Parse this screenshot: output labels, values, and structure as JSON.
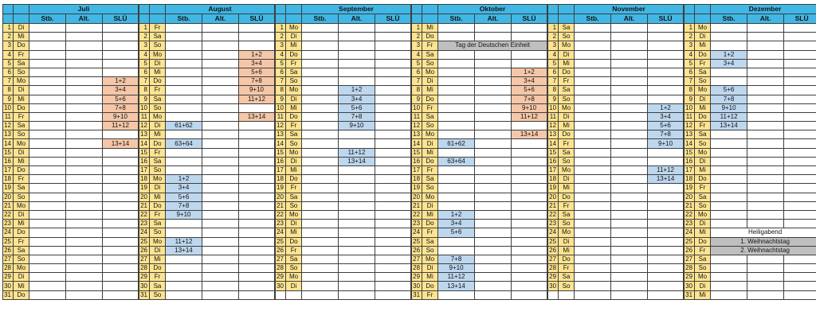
{
  "colors": {
    "header_blue": "#41b7e6",
    "day_yellow": "#ffe490",
    "cell_pink": "#f5c7a8",
    "cell_blue": "#bdd7ee",
    "cell_gray": "#bfbfbf"
  },
  "column_headers": [
    {
      "key": "stb",
      "label": "Stb."
    },
    {
      "key": "alt",
      "label": "Alt."
    },
    {
      "key": "slu",
      "label": "SLÜ"
    }
  ],
  "grid_rows": 31,
  "months": [
    {
      "id": "juli",
      "name": "Juli",
      "days_in_month": 31,
      "weekdays": [
        "Di",
        "Mi",
        "Do",
        "Fr",
        "Sa",
        "So",
        "Mo",
        "Di",
        "Mi",
        "Do",
        "Fr",
        "Sa",
        "So",
        "Mo",
        "Di",
        "Mi",
        "Do",
        "Fr",
        "Sa",
        "So",
        "Mo",
        "Di",
        "Mi",
        "Do",
        "Fr",
        "Sa",
        "So",
        "Mo",
        "Di",
        "Mi",
        "Do"
      ],
      "cells": [
        {
          "day": 7,
          "col": "slu",
          "value": "1+2",
          "color": "pink"
        },
        {
          "day": 8,
          "col": "slu",
          "value": "3+4",
          "color": "pink"
        },
        {
          "day": 9,
          "col": "slu",
          "value": "5+6",
          "color": "pink"
        },
        {
          "day": 10,
          "col": "slu",
          "value": "7+8",
          "color": "pink"
        },
        {
          "day": 11,
          "col": "slu",
          "value": "9+10",
          "color": "pink"
        },
        {
          "day": 12,
          "col": "slu",
          "value": "11+12",
          "color": "pink"
        },
        {
          "day": 14,
          "col": "slu",
          "value": "13+14",
          "color": "pink"
        }
      ],
      "holidays": []
    },
    {
      "id": "august",
      "name": "August",
      "days_in_month": 31,
      "weekdays": [
        "Fr",
        "Sa",
        "So",
        "Mo",
        "Di",
        "Mi",
        "Do",
        "Fr",
        "Sa",
        "So",
        "Mo",
        "Di",
        "Mi",
        "Do",
        "Fr",
        "Sa",
        "So",
        "Mo",
        "Di",
        "Mi",
        "Do",
        "Fr",
        "Sa",
        "So",
        "Mo",
        "Di",
        "Mi",
        "Do",
        "Fr",
        "Sa",
        "So"
      ],
      "cells": [
        {
          "day": 4,
          "col": "slu",
          "value": "1+2",
          "color": "pink"
        },
        {
          "day": 5,
          "col": "slu",
          "value": "3+4",
          "color": "pink"
        },
        {
          "day": 6,
          "col": "slu",
          "value": "5+6",
          "color": "pink"
        },
        {
          "day": 7,
          "col": "slu",
          "value": "7+8",
          "color": "pink"
        },
        {
          "day": 8,
          "col": "slu",
          "value": "9+10",
          "color": "pink"
        },
        {
          "day": 9,
          "col": "slu",
          "value": "11+12",
          "color": "pink"
        },
        {
          "day": 11,
          "col": "slu",
          "value": "13+14",
          "color": "pink"
        },
        {
          "day": 12,
          "col": "stb",
          "value": "61+62",
          "color": "blue"
        },
        {
          "day": 14,
          "col": "stb",
          "value": "63+64",
          "color": "blue"
        },
        {
          "day": 18,
          "col": "stb",
          "value": "1+2",
          "color": "blue"
        },
        {
          "day": 19,
          "col": "stb",
          "value": "3+4",
          "color": "blue"
        },
        {
          "day": 20,
          "col": "stb",
          "value": "5+6",
          "color": "blue"
        },
        {
          "day": 21,
          "col": "stb",
          "value": "7+8",
          "color": "blue"
        },
        {
          "day": 22,
          "col": "stb",
          "value": "9+10",
          "color": "blue"
        },
        {
          "day": 25,
          "col": "stb",
          "value": "11+12",
          "color": "blue"
        },
        {
          "day": 26,
          "col": "stb",
          "value": "13+14",
          "color": "blue"
        }
      ],
      "holidays": []
    },
    {
      "id": "september",
      "name": "September",
      "days_in_month": 30,
      "weekdays": [
        "Mo",
        "Di",
        "Mi",
        "Do",
        "Fr",
        "Sa",
        "So",
        "Mo",
        "Di",
        "Mi",
        "Do",
        "Fr",
        "Sa",
        "So",
        "Mo",
        "Di",
        "Mi",
        "Do",
        "Fr",
        "Sa",
        "So",
        "Mo",
        "Di",
        "Mi",
        "Do",
        "Fr",
        "Sa",
        "So",
        "Mo",
        "Di"
      ],
      "cells": [
        {
          "day": 8,
          "col": "alt",
          "value": "1+2",
          "color": "blue"
        },
        {
          "day": 9,
          "col": "alt",
          "value": "3+4",
          "color": "blue"
        },
        {
          "day": 10,
          "col": "alt",
          "value": "5+6",
          "color": "blue"
        },
        {
          "day": 11,
          "col": "alt",
          "value": "7+8",
          "color": "blue"
        },
        {
          "day": 12,
          "col": "alt",
          "value": "9+10",
          "color": "blue"
        },
        {
          "day": 15,
          "col": "alt",
          "value": "11+12",
          "color": "blue"
        },
        {
          "day": 16,
          "col": "alt",
          "value": "13+14",
          "color": "blue"
        }
      ],
      "holidays": []
    },
    {
      "id": "oktober",
      "name": "Oktober",
      "days_in_month": 31,
      "weekdays": [
        "Mi",
        "Do",
        "Fr",
        "Sa",
        "So",
        "Mo",
        "Di",
        "Mi",
        "Do",
        "Fr",
        "Sa",
        "So",
        "Mo",
        "Di",
        "Mi",
        "Do",
        "Fr",
        "Sa",
        "So",
        "Mo",
        "Di",
        "Mi",
        "Do",
        "Fr",
        "Sa",
        "So",
        "Mo",
        "Di",
        "Mi",
        "Do",
        "Fr"
      ],
      "cells": [
        {
          "day": 6,
          "col": "slu",
          "value": "1+2",
          "color": "pink"
        },
        {
          "day": 7,
          "col": "slu",
          "value": "3+4",
          "color": "pink"
        },
        {
          "day": 8,
          "col": "slu",
          "value": "5+6",
          "color": "pink"
        },
        {
          "day": 9,
          "col": "slu",
          "value": "7+8",
          "color": "pink"
        },
        {
          "day": 10,
          "col": "slu",
          "value": "9+10",
          "color": "pink"
        },
        {
          "day": 11,
          "col": "slu",
          "value": "11+12",
          "color": "pink"
        },
        {
          "day": 13,
          "col": "slu",
          "value": "13+14",
          "color": "pink"
        },
        {
          "day": 14,
          "col": "stb",
          "value": "61+62",
          "color": "blue"
        },
        {
          "day": 16,
          "col": "stb",
          "value": "63+64",
          "color": "blue"
        },
        {
          "day": 22,
          "col": "stb",
          "value": "1+2",
          "color": "blue"
        },
        {
          "day": 23,
          "col": "stb",
          "value": "3+4",
          "color": "blue"
        },
        {
          "day": 24,
          "col": "stb",
          "value": "5+6",
          "color": "blue"
        },
        {
          "day": 27,
          "col": "stb",
          "value": "7+8",
          "color": "blue"
        },
        {
          "day": 28,
          "col": "stb",
          "value": "9+10",
          "color": "blue"
        },
        {
          "day": 29,
          "col": "stb",
          "value": "11+12",
          "color": "blue"
        },
        {
          "day": 30,
          "col": "stb",
          "value": "13+14",
          "color": "blue"
        }
      ],
      "holidays": [
        {
          "day": 3,
          "text": "Tag der Deutschen Einheit",
          "bg": "gray"
        }
      ]
    },
    {
      "id": "november",
      "name": "November",
      "days_in_month": 30,
      "weekdays": [
        "Sa",
        "So",
        "Mo",
        "Di",
        "Mi",
        "Do",
        "Fr",
        "Sa",
        "So",
        "Mo",
        "Di",
        "Mi",
        "Do",
        "Fr",
        "Sa",
        "So",
        "Mo",
        "Di",
        "Mi",
        "Do",
        "Fr",
        "Sa",
        "So",
        "Mo",
        "Di",
        "Mi",
        "Do",
        "Fr",
        "Sa",
        "So"
      ],
      "cells": [
        {
          "day": 10,
          "col": "slu",
          "value": "1+2",
          "color": "blue"
        },
        {
          "day": 11,
          "col": "slu",
          "value": "3+4",
          "color": "blue"
        },
        {
          "day": 12,
          "col": "slu",
          "value": "5+6",
          "color": "blue"
        },
        {
          "day": 13,
          "col": "slu",
          "value": "7+8",
          "color": "blue"
        },
        {
          "day": 14,
          "col": "slu",
          "value": "9+10",
          "color": "blue"
        },
        {
          "day": 17,
          "col": "slu",
          "value": "11+12",
          "color": "blue"
        },
        {
          "day": 18,
          "col": "slu",
          "value": "13+14",
          "color": "blue"
        }
      ],
      "holidays": []
    },
    {
      "id": "dezember",
      "name": "Dezember",
      "days_in_month": 31,
      "weekdays": [
        "Mo",
        "Di",
        "Mi",
        "Do",
        "Fr",
        "Sa",
        "So",
        "Mo",
        "Di",
        "Mi",
        "Do",
        "Fr",
        "Sa",
        "So",
        "Mo",
        "Di",
        "Mi",
        "Do",
        "Fr",
        "Sa",
        "So",
        "Mo",
        "Di",
        "Mi",
        "Do",
        "Fr",
        "Sa",
        "So",
        "Mo",
        "Di",
        "Mi"
      ],
      "cells": [
        {
          "day": 4,
          "col": "stb",
          "value": "1+2",
          "color": "blue"
        },
        {
          "day": 5,
          "col": "stb",
          "value": "3+4",
          "color": "blue"
        },
        {
          "day": 8,
          "col": "stb",
          "value": "5+6",
          "color": "blue"
        },
        {
          "day": 9,
          "col": "stb",
          "value": "7+8",
          "color": "blue"
        },
        {
          "day": 10,
          "col": "stb",
          "value": "9+10",
          "color": "blue"
        },
        {
          "day": 11,
          "col": "stb",
          "value": "11+12",
          "color": "blue"
        },
        {
          "day": 12,
          "col": "stb",
          "value": "13+14",
          "color": "blue"
        }
      ],
      "holidays": [
        {
          "day": 24,
          "text": "Heiligabend",
          "bg": "white"
        },
        {
          "day": 25,
          "text": "1. Weihnachtstag",
          "bg": "gray"
        },
        {
          "day": 26,
          "text": "2. Weihnachtstag",
          "bg": "gray"
        }
      ]
    }
  ]
}
